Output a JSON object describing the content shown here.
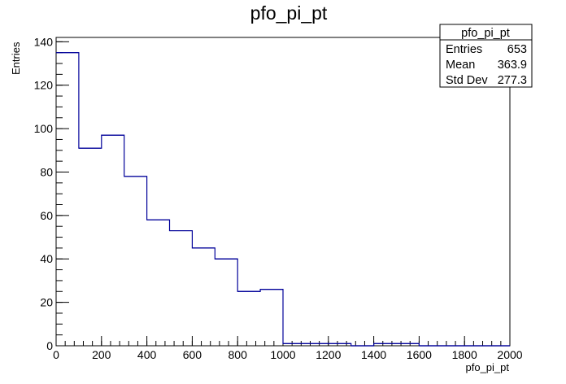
{
  "chart_data": {
    "type": "bar",
    "title": "pfo_pi_pt",
    "xlabel": "pfo_pi_pt",
    "ylabel": "Entries",
    "xlim": [
      0,
      2000
    ],
    "ylim": [
      0,
      142
    ],
    "x_ticks": [
      "0",
      "200",
      "400",
      "600",
      "800",
      "1000",
      "1200",
      "1400",
      "1600",
      "1800",
      "2000"
    ],
    "y_ticks": [
      "0",
      "20",
      "40",
      "60",
      "80",
      "100",
      "120",
      "140"
    ],
    "bin_width": 100,
    "bin_edges_start": [
      0,
      100,
      200,
      300,
      400,
      500,
      600,
      700,
      800,
      900,
      1000,
      1100,
      1200,
      1300,
      1400,
      1500,
      1600,
      1700,
      1800,
      1900
    ],
    "values": [
      135,
      91,
      97,
      78,
      58,
      53,
      45,
      40,
      25,
      26,
      1,
      1,
      1,
      0,
      1,
      1,
      0,
      0,
      0,
      0
    ],
    "line_color": "#000099",
    "grid": false,
    "stats_box": {
      "title": "pfo_pi_pt",
      "placement": "top-right",
      "rows": [
        {
          "label": "Entries",
          "value": "653"
        },
        {
          "label": "Mean",
          "value": "363.9"
        },
        {
          "label": "Std Dev",
          "value": "277.3"
        }
      ]
    }
  }
}
